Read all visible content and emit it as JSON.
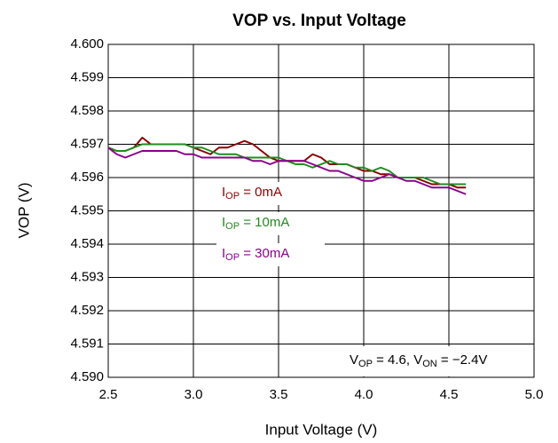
{
  "chart_data": {
    "type": "line",
    "title": "VOP vs. Input Voltage",
    "x_label": "Input Voltage (V)",
    "y_label": "VOP (V)",
    "annotation": [
      "V",
      "OP",
      " = 4.6, V",
      "ON",
      " = −2.4V"
    ],
    "xlim": [
      2.5,
      5.0
    ],
    "xticks": [
      2.5,
      {
        "value": 3,
        "label": "3.0"
      },
      3.5,
      {
        "value": 4,
        "label": "4.0"
      },
      4.5,
      {
        "value": 5,
        "label": "5.0"
      }
    ],
    "ylim": [
      4.59,
      4.6
    ],
    "yticks": [
      {
        "value": 4.59,
        "label": "4.590"
      },
      4.591,
      4.592,
      4.593,
      4.594,
      4.595,
      4.596,
      4.597,
      4.598,
      4.599,
      {
        "value": 4.6,
        "label": "4.600"
      }
    ],
    "grid": true,
    "x": [
      2.5,
      2.55,
      2.6,
      2.65,
      2.7,
      2.75,
      2.8,
      2.85,
      2.9,
      2.95,
      3.0,
      3.05,
      3.1,
      3.15,
      3.2,
      3.25,
      3.3,
      3.35,
      3.4,
      3.45,
      3.5,
      3.55,
      3.6,
      3.65,
      3.7,
      3.75,
      3.8,
      3.85,
      3.9,
      3.95,
      4.0,
      4.05,
      4.1,
      4.15,
      4.2,
      4.25,
      4.3,
      4.35,
      4.4,
      4.45,
      4.5,
      4.55,
      4.6
    ],
    "series": [
      {
        "name": [
          "I",
          "OP",
          " = 0mA"
        ],
        "color": "#8b0000",
        "values": [
          4.5969,
          4.5968,
          4.5968,
          4.5969,
          4.5972,
          4.597,
          4.597,
          4.597,
          4.597,
          4.597,
          4.5969,
          4.5968,
          4.5967,
          4.5969,
          4.5969,
          4.597,
          4.5971,
          4.597,
          4.5968,
          4.5966,
          4.5965,
          4.5965,
          4.5965,
          4.5965,
          4.5967,
          4.5966,
          4.5964,
          4.5964,
          4.5964,
          4.5963,
          4.5962,
          4.5962,
          4.5961,
          4.5961,
          4.596,
          4.596,
          4.596,
          4.5959,
          4.5958,
          4.5958,
          4.5958,
          4.5957,
          4.5957
        ]
      },
      {
        "name": [
          "I",
          "OP",
          " = 10mA"
        ],
        "color": "#1f8c1f",
        "values": [
          4.5969,
          4.5968,
          4.5968,
          4.5969,
          4.597,
          4.597,
          4.597,
          4.597,
          4.597,
          4.597,
          4.5969,
          4.5969,
          4.5968,
          4.5967,
          4.5967,
          4.5967,
          4.5966,
          4.5966,
          4.5966,
          4.5966,
          4.5966,
          4.5965,
          4.5964,
          4.5964,
          4.5963,
          4.5964,
          4.5965,
          4.5964,
          4.5964,
          4.5963,
          4.5963,
          4.5962,
          4.5963,
          4.5962,
          4.596,
          4.596,
          4.596,
          4.596,
          4.5959,
          4.5958,
          4.5958,
          4.5958,
          4.5958
        ]
      },
      {
        "name": [
          "I",
          "OP",
          " = 30mA"
        ],
        "color": "#8b008b",
        "values": [
          4.5969,
          4.5967,
          4.5966,
          4.5967,
          4.5968,
          4.5968,
          4.5968,
          4.5968,
          4.5968,
          4.5967,
          4.5967,
          4.5966,
          4.5966,
          4.5966,
          4.5966,
          4.5966,
          4.5966,
          4.5965,
          4.5965,
          4.5964,
          4.5965,
          4.5965,
          4.5965,
          4.5965,
          4.5964,
          4.5963,
          4.5962,
          4.5962,
          4.5961,
          4.596,
          4.5959,
          4.5959,
          4.596,
          4.5961,
          4.596,
          4.5959,
          4.5959,
          4.5958,
          4.5957,
          4.5957,
          4.5957,
          4.5956,
          4.5955
        ]
      }
    ]
  }
}
